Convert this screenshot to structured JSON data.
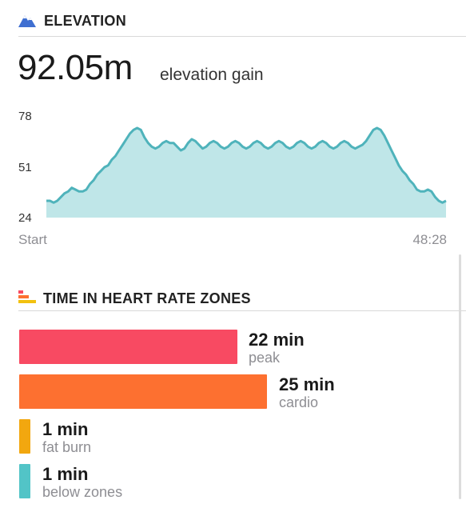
{
  "colors": {
    "accent": "#3f6fd1",
    "elevation_line": "#4fb3bb",
    "elevation_fill": "#bfe6e8",
    "peak": "#f84a62",
    "cardio": "#fd7030",
    "fat_burn": "#f2a70f",
    "below_zones": "#52c4c7"
  },
  "elevation": {
    "icon": "mountain-icon",
    "title": "ELEVATION",
    "value": "92.05m",
    "value_label": "elevation gain",
    "y_ticks": [
      "78",
      "51",
      "24"
    ],
    "x_start": "Start",
    "x_end": "48:28"
  },
  "chart_data": {
    "type": "area",
    "y_ticks": [
      24,
      51,
      78
    ],
    "ylim": [
      24,
      78
    ],
    "xlabel": "",
    "ylabel": "",
    "x_labels": [
      "Start",
      "48:28"
    ],
    "values": [
      33,
      33,
      32,
      33,
      35,
      37,
      38,
      40,
      39,
      38,
      38,
      39,
      42,
      44,
      47,
      49,
      51,
      52,
      55,
      57,
      60,
      63,
      66,
      69,
      71,
      72,
      71,
      67,
      64,
      62,
      61,
      62,
      64,
      65,
      64,
      64,
      62,
      60,
      61,
      64,
      66,
      65,
      63,
      61,
      62,
      64,
      65,
      64,
      62,
      61,
      62,
      64,
      65,
      64,
      62,
      61,
      62,
      64,
      65,
      64,
      62,
      61,
      62,
      64,
      65,
      64,
      62,
      61,
      62,
      64,
      65,
      64,
      62,
      61,
      62,
      64,
      65,
      64,
      62,
      61,
      62,
      64,
      65,
      64,
      62,
      61,
      62,
      63,
      65,
      68,
      71,
      72,
      71,
      68,
      64,
      60,
      56,
      52,
      49,
      47,
      44,
      42,
      39,
      38,
      38,
      39,
      38,
      35,
      33,
      32,
      33
    ]
  },
  "heart_rate": {
    "icon": "heart-rate-zones-icon",
    "title": "TIME IN HEART RATE ZONES",
    "zones": [
      {
        "value": "22 min",
        "label": "peak",
        "minutes": 22
      },
      {
        "value": "25 min",
        "label": "cardio",
        "minutes": 25
      },
      {
        "value": "1 min",
        "label": "fat burn",
        "minutes": 1
      },
      {
        "value": "1 min",
        "label": "below zones",
        "minutes": 1
      }
    ]
  }
}
